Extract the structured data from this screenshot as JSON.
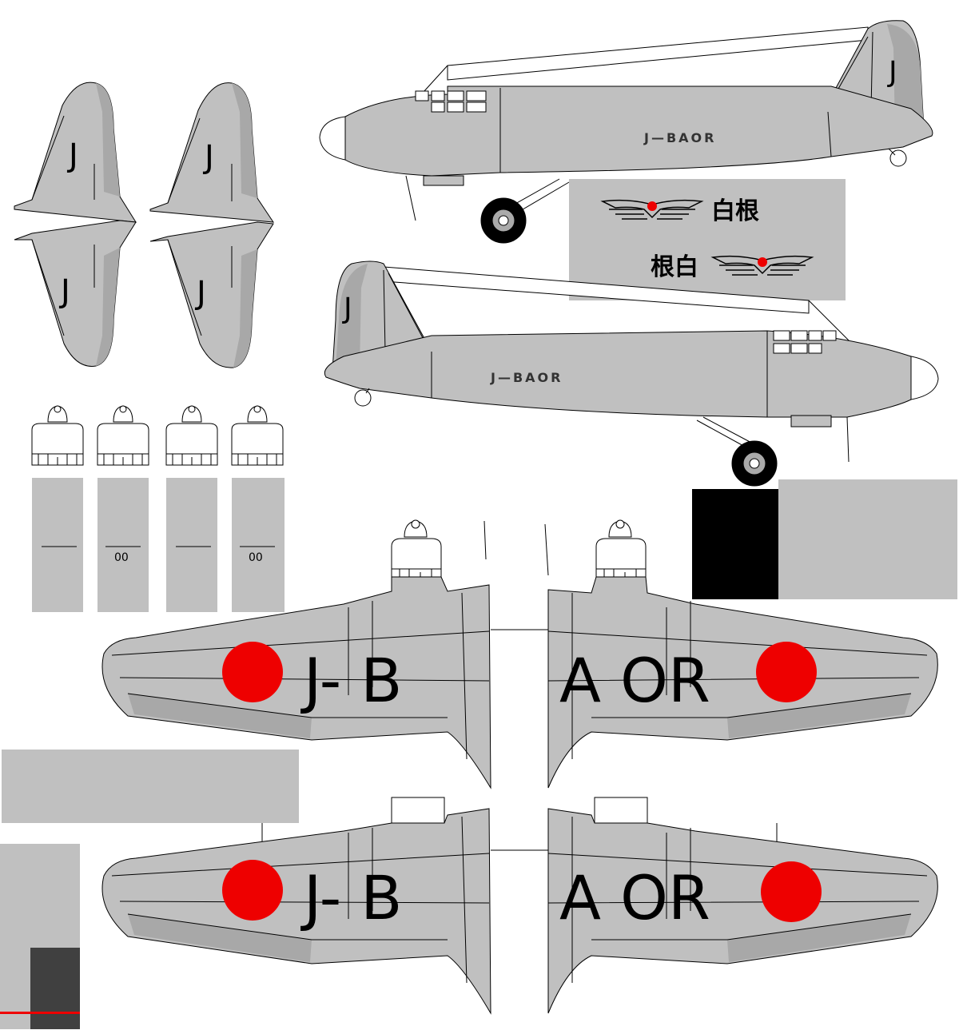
{
  "texture": {
    "fuselage_registration": "J—BAOR",
    "wing_registration_left": "J- B",
    "wing_registration_right": "A OR",
    "tail_letter": "J",
    "rudder_letter": "J",
    "insignia_label_right": "白根",
    "insignia_label_left": "根白",
    "nacelle_marks": [
      "",
      "00",
      "",
      "00"
    ],
    "colors": {
      "airframe": "#c0c0c0",
      "panel_shadow": "#a8a8a8",
      "glass": "#ffffff",
      "hinomaru": "#ee0000",
      "ink": "#000000",
      "swatch_dark": "#404040"
    }
  }
}
